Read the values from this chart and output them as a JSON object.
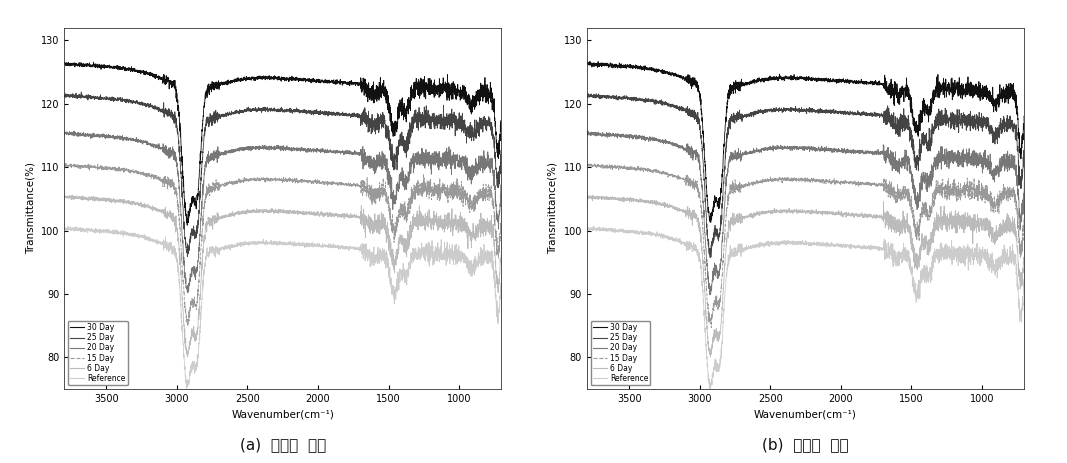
{
  "xlabel": "Wavenumber(cm⁻¹)",
  "ylabel": "Transmittance(%)",
  "xlim": [
    3800,
    700
  ],
  "ylim": [
    75,
    132
  ],
  "yticks": [
    80,
    90,
    100,
    110,
    120,
    130
  ],
  "xticks": [
    3500,
    3000,
    2500,
    2000,
    1500,
    1000
  ],
  "title_a": "(a)  지지층  소재",
  "title_b": "(b)  표면층  소재",
  "legend_labels": [
    "30 Day",
    "25 Day",
    "20 Day",
    "15 Day",
    "6 Day",
    "Reference"
  ],
  "series_offsets_a": [
    26,
    21,
    15,
    10,
    5,
    0
  ],
  "series_offsets_b": [
    26,
    21,
    15,
    10,
    5,
    0
  ],
  "base_level": 98,
  "line_styles": [
    "-",
    "-",
    "-",
    "--",
    "-",
    "-"
  ],
  "line_colors_a": [
    "#111111",
    "#444444",
    "#777777",
    "#999999",
    "#bbbbbb",
    "#cccccc"
  ],
  "line_colors_b": [
    "#111111",
    "#444444",
    "#777777",
    "#999999",
    "#bbbbbb",
    "#cccccc"
  ],
  "bg_color": "#ffffff",
  "plot_bg": "#ffffff"
}
